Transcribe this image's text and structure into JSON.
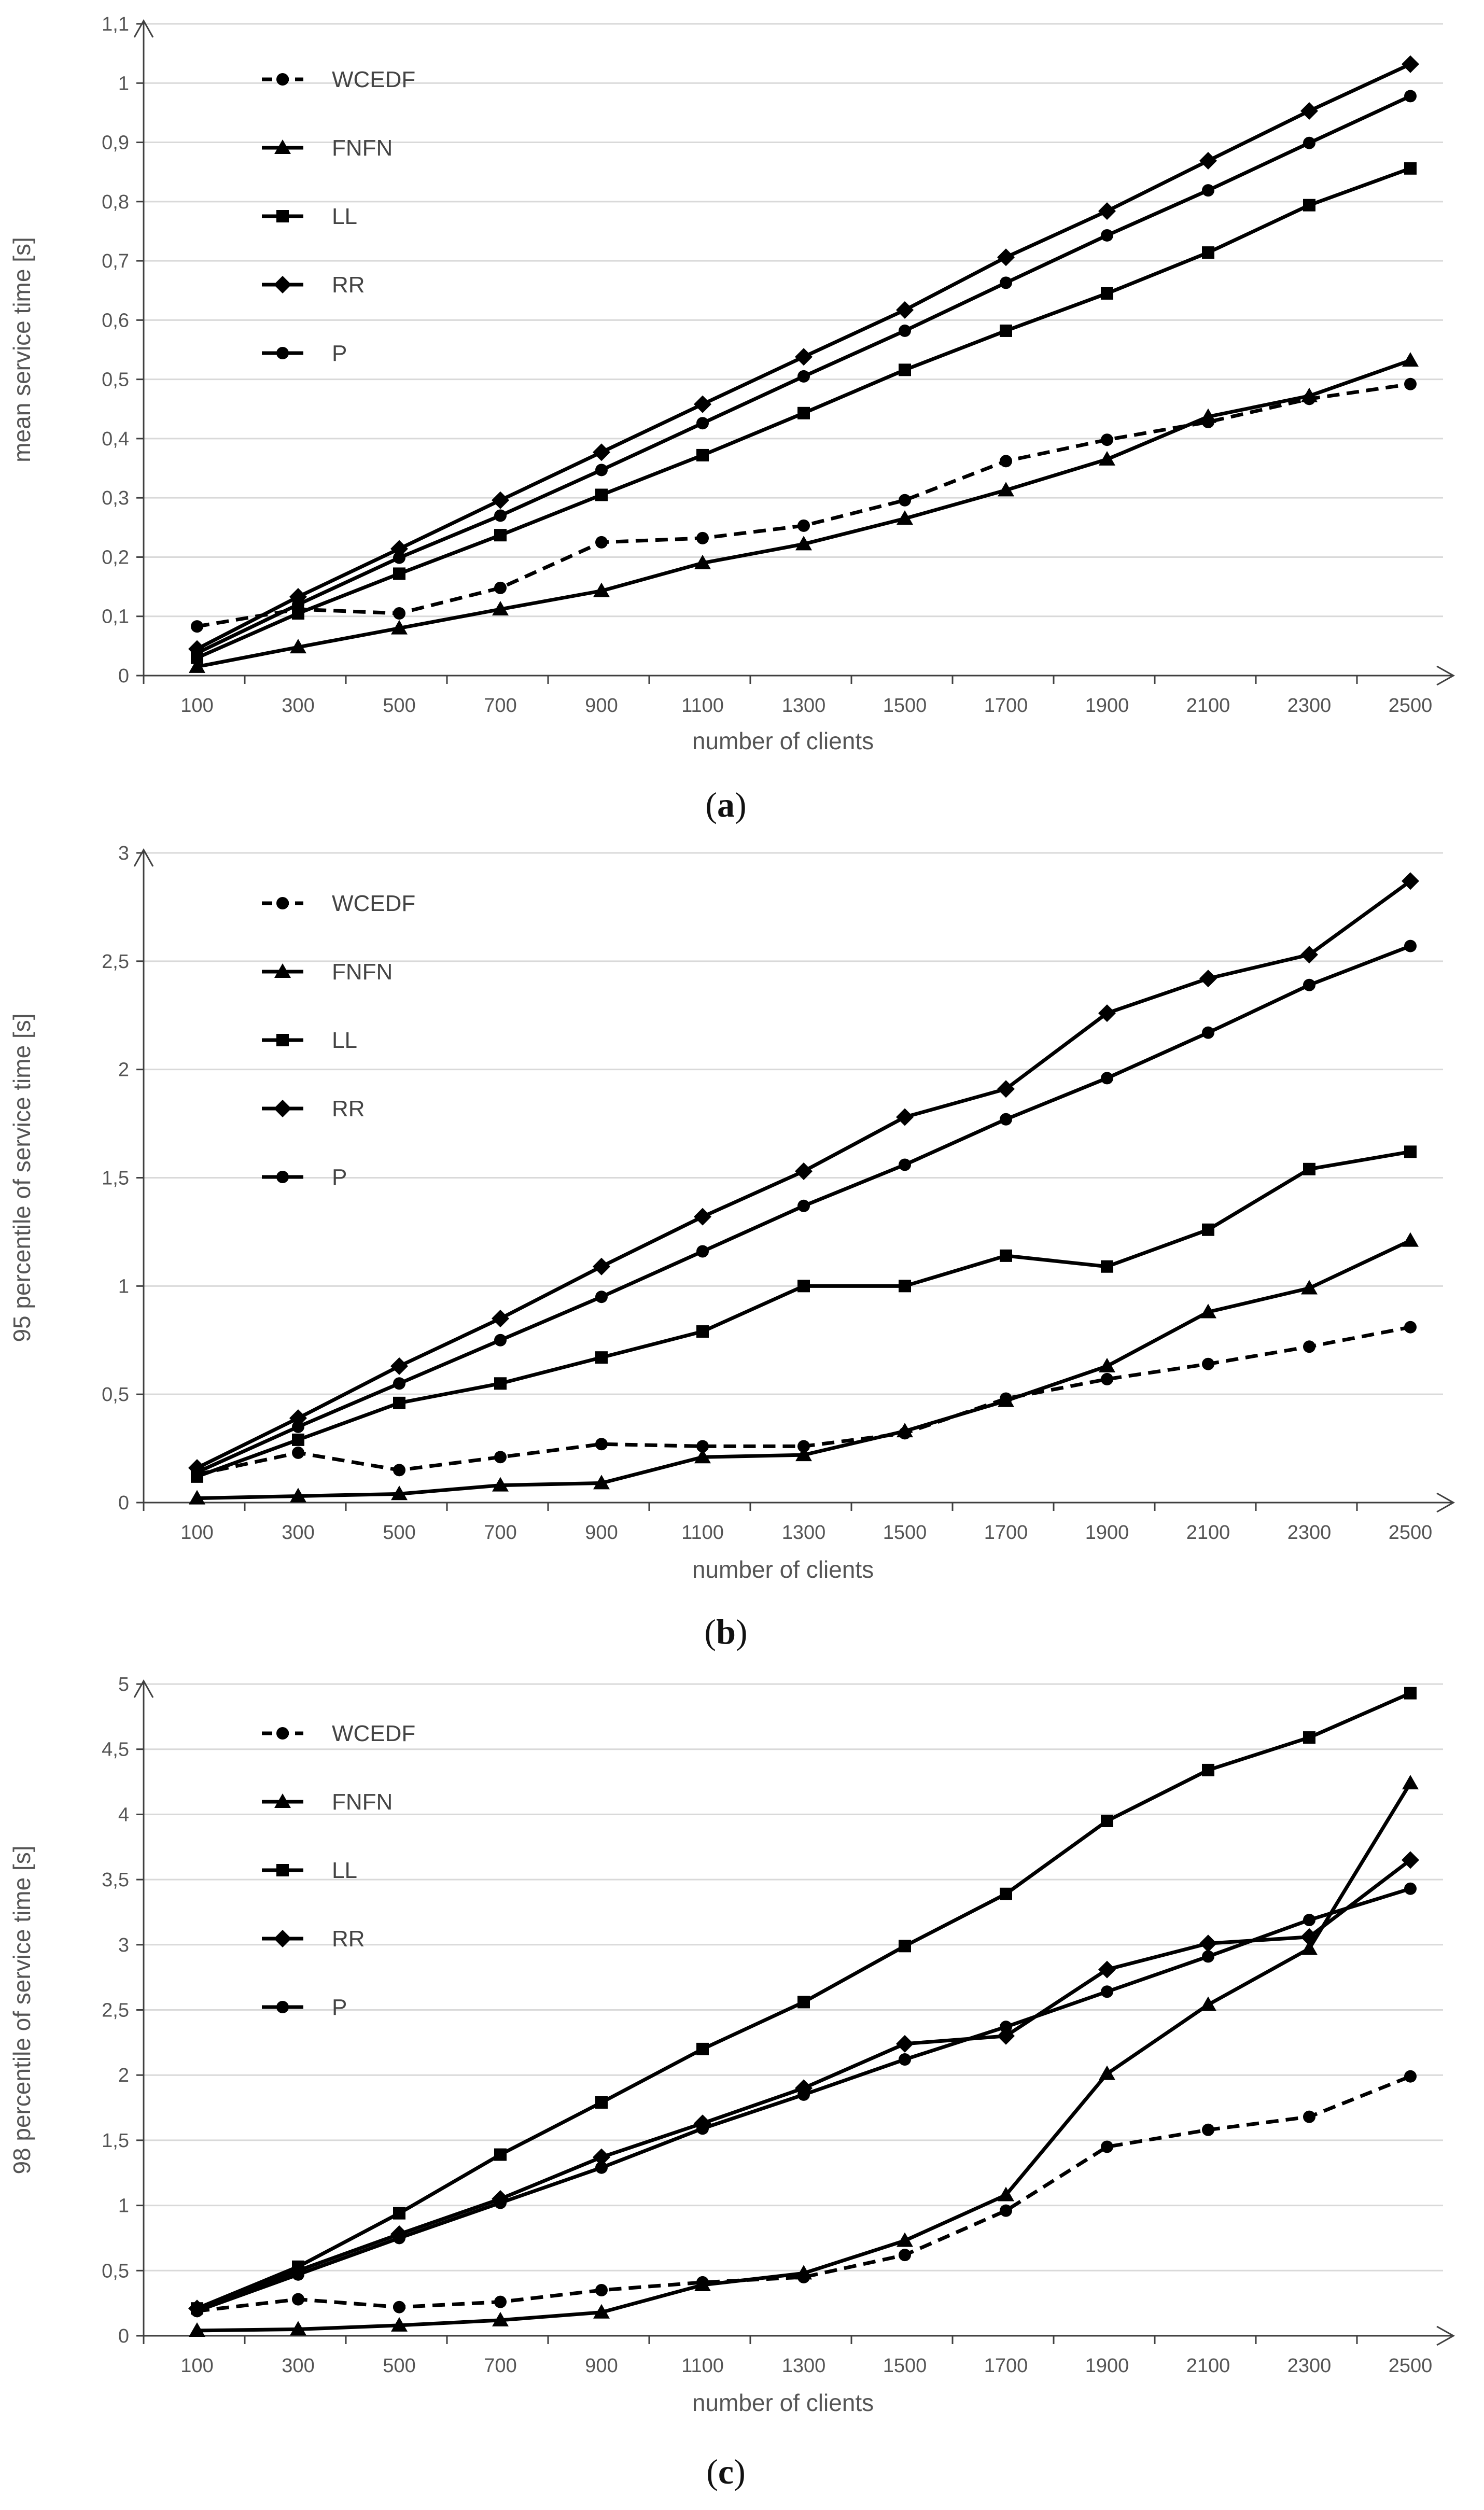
{
  "colors": {
    "grid": "#d9d9d9",
    "axis": "#404040",
    "series": "#000000",
    "tick_text": "#555555"
  },
  "chart_data": [
    {
      "type": "line",
      "caption_letter": "a",
      "caption_left": "(",
      "caption_right": ")",
      "xlabel": "number of clients",
      "ylabel": "mean service time [s]",
      "categories": [
        "100",
        "300",
        "500",
        "700",
        "900",
        "1100",
        "1300",
        "1500",
        "1700",
        "1900",
        "2100",
        "2300",
        "2500"
      ],
      "ylim": [
        0,
        1.1
      ],
      "yticks": [
        "0",
        "0,1",
        "0,2",
        "0,3",
        "0,4",
        "0,5",
        "0,6",
        "0,7",
        "0,8",
        "0,9",
        "1",
        "1,1"
      ],
      "legend_position": "top-left",
      "grid": true,
      "series": [
        {
          "name": "WCEDF",
          "style": "dashed",
          "marker": "circle",
          "values": [
            0.083,
            0.112,
            0.105,
            0.148,
            0.225,
            0.232,
            0.253,
            0.296,
            0.362,
            0.398,
            0.428,
            0.467,
            0.492
          ]
        },
        {
          "name": "FNFN",
          "style": "solid",
          "marker": "triangle",
          "values": [
            0.015,
            0.048,
            0.08,
            0.112,
            0.143,
            0.19,
            0.222,
            0.265,
            0.313,
            0.365,
            0.437,
            0.472,
            0.532
          ]
        },
        {
          "name": "LL",
          "style": "solid",
          "marker": "square",
          "values": [
            0.03,
            0.105,
            0.172,
            0.237,
            0.305,
            0.372,
            0.443,
            0.516,
            0.582,
            0.645,
            0.714,
            0.794,
            0.856
          ]
        },
        {
          "name": "RR",
          "style": "solid",
          "marker": "diamond",
          "values": [
            0.045,
            0.133,
            0.214,
            0.296,
            0.377,
            0.458,
            0.538,
            0.617,
            0.706,
            0.784,
            0.869,
            0.953,
            1.032
          ]
        },
        {
          "name": "P",
          "style": "solid",
          "marker": "circle",
          "values": [
            0.038,
            0.12,
            0.199,
            0.27,
            0.347,
            0.426,
            0.505,
            0.582,
            0.663,
            0.743,
            0.819,
            0.899,
            0.978
          ]
        }
      ]
    },
    {
      "type": "line",
      "caption_letter": "b",
      "caption_left": "(",
      "caption_right": ")",
      "xlabel": "number of clients",
      "ylabel": "95 percentile of service time  [s]",
      "categories": [
        "100",
        "300",
        "500",
        "700",
        "900",
        "1100",
        "1300",
        "1500",
        "1700",
        "1900",
        "2100",
        "2300",
        "2500"
      ],
      "ylim": [
        0,
        3
      ],
      "yticks": [
        "0",
        "0,5",
        "1",
        "1,5",
        "2",
        "2,5",
        "3"
      ],
      "legend_position": "top-left",
      "grid": true,
      "series": [
        {
          "name": "WCEDF",
          "style": "dashed",
          "marker": "circle",
          "values": [
            0.13,
            0.23,
            0.15,
            0.21,
            0.27,
            0.26,
            0.26,
            0.32,
            0.48,
            0.57,
            0.64,
            0.72,
            0.81
          ]
        },
        {
          "name": "FNFN",
          "style": "solid",
          "marker": "triangle",
          "values": [
            0.02,
            0.03,
            0.04,
            0.08,
            0.09,
            0.21,
            0.22,
            0.33,
            0.47,
            0.63,
            0.88,
            0.99,
            1.21
          ]
        },
        {
          "name": "LL",
          "style": "solid",
          "marker": "square",
          "values": [
            0.12,
            0.29,
            0.46,
            0.55,
            0.67,
            0.79,
            1.0,
            1.0,
            1.14,
            1.09,
            1.26,
            1.54,
            1.62
          ]
        },
        {
          "name": "RR",
          "style": "solid",
          "marker": "diamond",
          "values": [
            0.16,
            0.39,
            0.63,
            0.85,
            1.09,
            1.32,
            1.53,
            1.78,
            1.91,
            2.26,
            2.42,
            2.53,
            2.87
          ]
        },
        {
          "name": "P",
          "style": "solid",
          "marker": "circle",
          "values": [
            0.14,
            0.35,
            0.55,
            0.75,
            0.95,
            1.16,
            1.37,
            1.56,
            1.77,
            1.96,
            2.17,
            2.39,
            2.57
          ]
        }
      ]
    },
    {
      "type": "line",
      "caption_letter": "c",
      "caption_left": "(",
      "caption_right": ")",
      "xlabel": "number of clients",
      "ylabel": "98 percentile of service time  [s]",
      "categories": [
        "100",
        "300",
        "500",
        "700",
        "900",
        "1100",
        "1300",
        "1500",
        "1700",
        "1900",
        "2100",
        "2300",
        "2500"
      ],
      "ylim": [
        0,
        5
      ],
      "yticks": [
        "0",
        "0,5",
        "1",
        "1,5",
        "2",
        "2,5",
        "3",
        "3,5",
        "4",
        "4,5",
        "5"
      ],
      "legend_position": "top-left",
      "grid": true,
      "series": [
        {
          "name": "WCEDF",
          "style": "dashed",
          "marker": "circle",
          "values": [
            0.19,
            0.28,
            0.22,
            0.26,
            0.35,
            0.41,
            0.45,
            0.62,
            0.96,
            1.45,
            1.58,
            1.68,
            1.99
          ]
        },
        {
          "name": "FNFN",
          "style": "solid",
          "marker": "triangle",
          "values": [
            0.04,
            0.05,
            0.08,
            0.12,
            0.18,
            0.39,
            0.48,
            0.73,
            1.08,
            2.01,
            2.54,
            2.97,
            4.24
          ]
        },
        {
          "name": "LL",
          "style": "solid",
          "marker": "square",
          "values": [
            0.21,
            0.53,
            0.94,
            1.39,
            1.79,
            2.2,
            2.56,
            2.99,
            3.39,
            3.95,
            4.34,
            4.59,
            4.93
          ]
        },
        {
          "name": "RR",
          "style": "solid",
          "marker": "diamond",
          "values": [
            0.21,
            0.5,
            0.78,
            1.05,
            1.37,
            1.63,
            1.9,
            2.24,
            2.3,
            2.81,
            3.01,
            3.06,
            3.65
          ]
        },
        {
          "name": "P",
          "style": "solid",
          "marker": "circle",
          "values": [
            0.19,
            0.47,
            0.75,
            1.02,
            1.29,
            1.59,
            1.85,
            2.12,
            2.37,
            2.64,
            2.91,
            3.19,
            3.43
          ]
        }
      ]
    }
  ]
}
